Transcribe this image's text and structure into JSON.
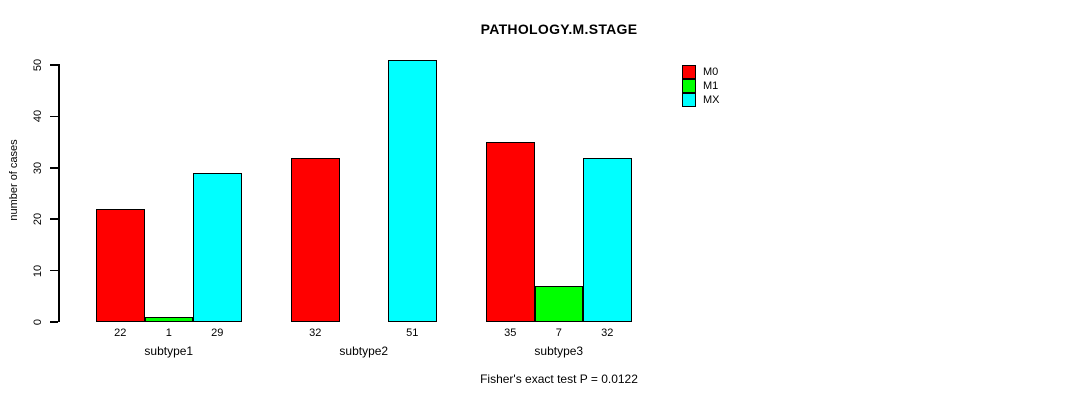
{
  "chart_data": {
    "type": "bar",
    "grouped": true,
    "title": "PATHOLOGY.M.STAGE",
    "categories": [
      "subtype1",
      "subtype2",
      "subtype3"
    ],
    "series": [
      {
        "name": "M0",
        "color": "#FF0000",
        "values": [
          22,
          32,
          35
        ]
      },
      {
        "name": "M1",
        "color": "#00FF00",
        "values": [
          1,
          0,
          7
        ]
      },
      {
        "name": "MX",
        "color": "#00FFFF",
        "values": [
          29,
          51,
          32
        ]
      }
    ],
    "xlabel": "",
    "ylabel": "number of cases",
    "ylim": [
      0,
      50
    ],
    "yticks": [
      0,
      10,
      20,
      30,
      40,
      50
    ],
    "grid": false,
    "bar_value_labels": true,
    "zero_bars_hidden": true,
    "legend": {
      "position": "top-right",
      "entries": [
        "M0",
        "M1",
        "MX"
      ]
    },
    "annotation": "Fisher's exact test P = 0.0122"
  }
}
